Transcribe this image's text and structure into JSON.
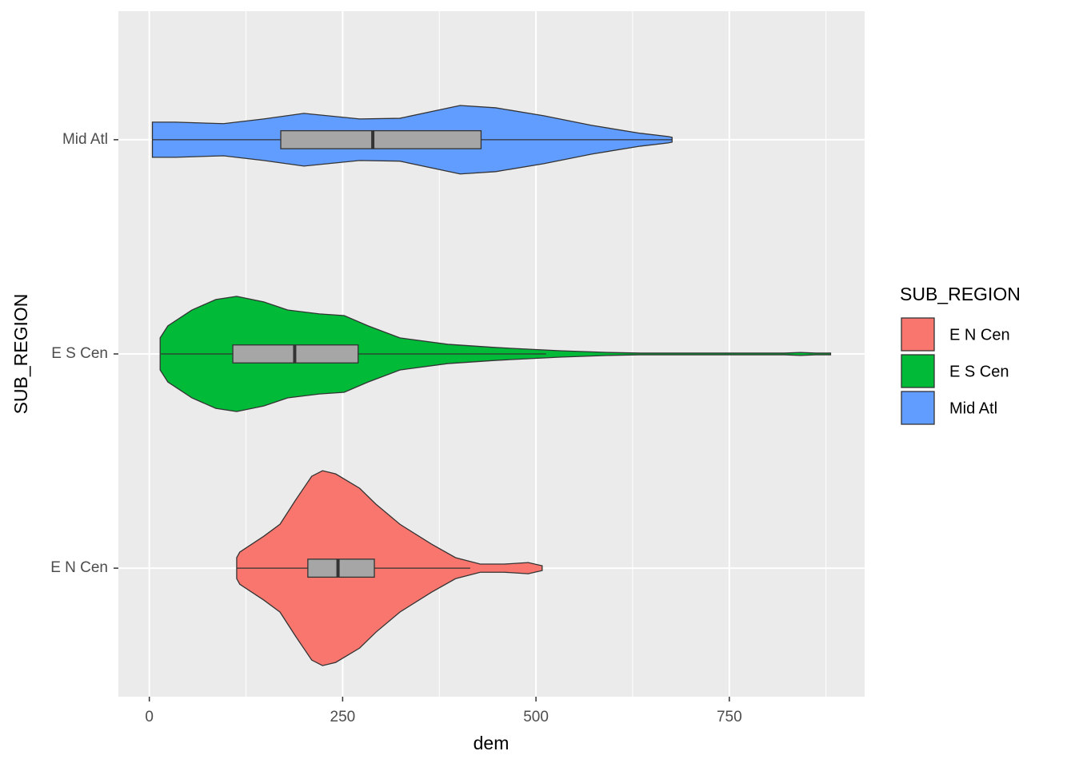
{
  "chart_data": {
    "type": "violin",
    "x_label": "dem",
    "y_label": "SUB_REGION",
    "legend_title": "SUB_REGION",
    "categories": [
      "E N Cen",
      "E S Cen",
      "Mid Atl"
    ],
    "xlim": [
      -40,
      925
    ],
    "xticks": [
      0,
      250,
      500,
      750
    ],
    "x_minor_ticks": [
      125,
      375,
      625,
      875
    ],
    "grid": true,
    "legend_position": "right",
    "series": [
      {
        "name": "E N Cen",
        "color": "#F8766D",
        "violin": {
          "x": [
            113,
            117,
            148,
            169,
            189,
            210,
            224,
            241,
            272,
            293,
            324,
            365,
            396,
            428,
            459,
            490,
            508
          ],
          "width": [
            0.049,
            0.075,
            0.149,
            0.205,
            0.317,
            0.429,
            0.455,
            0.44,
            0.373,
            0.299,
            0.205,
            0.112,
            0.049,
            0.019,
            0.019,
            0.026,
            0.011
          ]
        },
        "box": {
          "whisker_low": 113,
          "q1": 205,
          "median": 244,
          "q3": 291,
          "whisker_high": 415
        }
      },
      {
        "name": "E S Cen",
        "color": "#00BA38",
        "violin": {
          "x": [
            14,
            24,
            55,
            86,
            113,
            148,
            179,
            220,
            252,
            283,
            324,
            386,
            448,
            531,
            593,
            635,
            738,
            821,
            842,
            862,
            881
          ],
          "width": [
            0.075,
            0.131,
            0.205,
            0.254,
            0.269,
            0.243,
            0.205,
            0.187,
            0.179,
            0.131,
            0.075,
            0.045,
            0.03,
            0.015,
            0.007,
            0.004,
            0.004,
            0.004,
            0.007,
            0.004,
            0.004
          ]
        },
        "box": {
          "whisker_low": 15,
          "q1": 108,
          "median": 188,
          "q3": 270,
          "whisker_high": 513
        }
      },
      {
        "name": "Mid Atl",
        "color": "#619CFF",
        "violin": {
          "x": [
            4,
            34,
            96,
            148,
            200,
            272,
            324,
            402,
            448,
            510,
            572,
            635,
            671,
            676
          ],
          "width": [
            0.082,
            0.082,
            0.075,
            0.097,
            0.123,
            0.097,
            0.1,
            0.16,
            0.149,
            0.112,
            0.067,
            0.03,
            0.015,
            0.011
          ]
        },
        "box": {
          "whisker_low": 4,
          "q1": 170,
          "median": 289,
          "q3": 429,
          "whisker_high": 676
        }
      }
    ]
  }
}
